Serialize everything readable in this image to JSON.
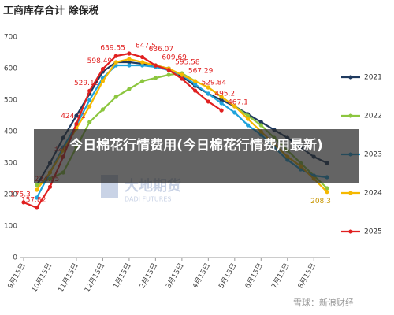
{
  "chart_data": {
    "type": "line",
    "title": "工商库存合计  除保税",
    "categories": [
      "9月15日",
      null,
      "10月15日",
      null,
      "11月15日",
      null,
      "12月15日",
      null,
      "1月15日",
      null,
      "2月15日",
      null,
      "3月15日",
      null,
      "4月15日",
      null,
      "5月15日",
      null,
      "6月15日",
      null,
      "7月15日",
      null,
      "8月15日",
      null
    ],
    "ylim": [
      0,
      700
    ],
    "yticks": [
      0,
      100,
      200,
      300,
      400,
      500,
      600,
      700
    ],
    "grid": false,
    "legend": "right",
    "series": [
      {
        "name": "2021",
        "color": "#1f3a5f",
        "values": [
          null,
          230,
          300,
          380,
          450,
          520,
          590,
          620,
          620,
          615,
          610,
          600,
          575,
          545,
          520,
          500,
          480,
          455,
          430,
          405,
          380,
          350,
          320,
          300
        ]
      },
      {
        "name": "2022",
        "color": "#8cc63f",
        "values": [
          null,
          230,
          250,
          270,
          350,
          430,
          470,
          510,
          535,
          560,
          570,
          580,
          585,
          560,
          540,
          510,
          480,
          450,
          420,
          380,
          340,
          300,
          260,
          220
        ]
      },
      {
        "name": "2023",
        "color": "#1fa3dc",
        "values": [
          null,
          190,
          270,
          350,
          420,
          500,
          570,
          610,
          610,
          610,
          605,
          595,
          580,
          550,
          520,
          490,
          460,
          420,
          390,
          350,
          310,
          280,
          260,
          255
        ]
      },
      {
        "name": "2024",
        "color": "#f5b800",
        "label_last": true,
        "values": [
          null,
          215,
          270,
          340,
          410,
          480,
          560,
          620,
          630,
          620,
          610,
          600,
          580,
          560,
          540,
          510,
          480,
          440,
          400,
          360,
          320,
          290,
          250,
          208.3
        ]
      },
      {
        "name": "2025",
        "color": "#e02020",
        "labels": true,
        "values": [
          175.3,
          157.82,
          224.15,
          320,
          424.31,
          529.12,
          598.49,
          639.55,
          647.5,
          636.07,
          609.69,
          595.58,
          567.29,
          529.84,
          495.2,
          467.1,
          null,
          null,
          null,
          null,
          null,
          null,
          null,
          null
        ]
      }
    ]
  },
  "overlay": {
    "headline": "今日棉花行情费用(今日棉花行情费用最新)"
  },
  "watermarks": {
    "brand": "大地期货",
    "brand_en": "DADI FUTURES",
    "source": "雪球：新浪财经"
  }
}
